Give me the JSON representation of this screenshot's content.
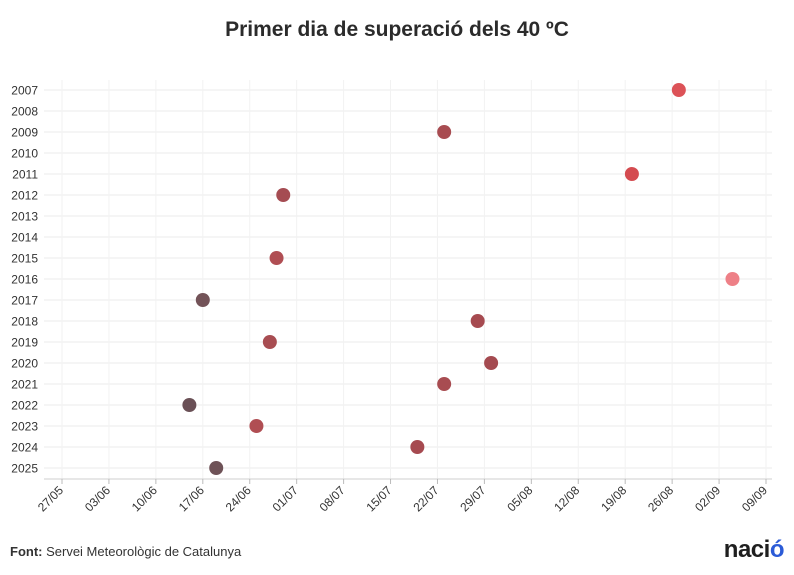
{
  "title": "Primer dia de superació dels 40 ºC",
  "footer": {
    "source_label": "Font:",
    "source_text": " Servei Meteorològic de Catalunya"
  },
  "brand": {
    "text": "naci",
    "accent": "ó"
  },
  "chart_data": {
    "type": "scatter",
    "title": "Primer dia de superació dels 40 ºC",
    "xlabel": "",
    "ylabel": "",
    "grid": true,
    "x_ticks": [
      "27/05",
      "03/06",
      "10/06",
      "17/06",
      "24/06",
      "01/07",
      "08/07",
      "15/07",
      "22/07",
      "29/07",
      "05/08",
      "12/08",
      "19/08",
      "26/08",
      "02/09",
      "09/09"
    ],
    "x_range": [
      "2025-05-27",
      "2025-09-09"
    ],
    "y_categories": [
      "2007",
      "2008",
      "2009",
      "2010",
      "2011",
      "2012",
      "2013",
      "2014",
      "2015",
      "2016",
      "2017",
      "2018",
      "2019",
      "2020",
      "2021",
      "2022",
      "2023",
      "2024",
      "2025"
    ],
    "points": [
      {
        "year": "2007",
        "date": "27/08",
        "color": "#dc5257"
      },
      {
        "year": "2009",
        "date": "23/07",
        "color": "#a84c51"
      },
      {
        "year": "2011",
        "date": "20/08",
        "color": "#d44b50"
      },
      {
        "year": "2012",
        "date": "29/06",
        "color": "#a54c52"
      },
      {
        "year": "2015",
        "date": "28/06",
        "color": "#b04e53"
      },
      {
        "year": "2016",
        "date": "04/09",
        "color": "#ee8087"
      },
      {
        "year": "2017",
        "date": "17/06",
        "color": "#735358"
      },
      {
        "year": "2018",
        "date": "28/07",
        "color": "#a64a50"
      },
      {
        "year": "2019",
        "date": "27/06",
        "color": "#a84d52"
      },
      {
        "year": "2020",
        "date": "30/07",
        "color": "#a44a50"
      },
      {
        "year": "2021",
        "date": "23/07",
        "color": "#a84c51"
      },
      {
        "year": "2022",
        "date": "15/06",
        "color": "#6a5056"
      },
      {
        "year": "2023",
        "date": "25/06",
        "color": "#b04e53"
      },
      {
        "year": "2024",
        "date": "19/07",
        "color": "#a64a50"
      },
      {
        "year": "2025",
        "date": "19/06",
        "color": "#6e5257"
      }
    ]
  }
}
